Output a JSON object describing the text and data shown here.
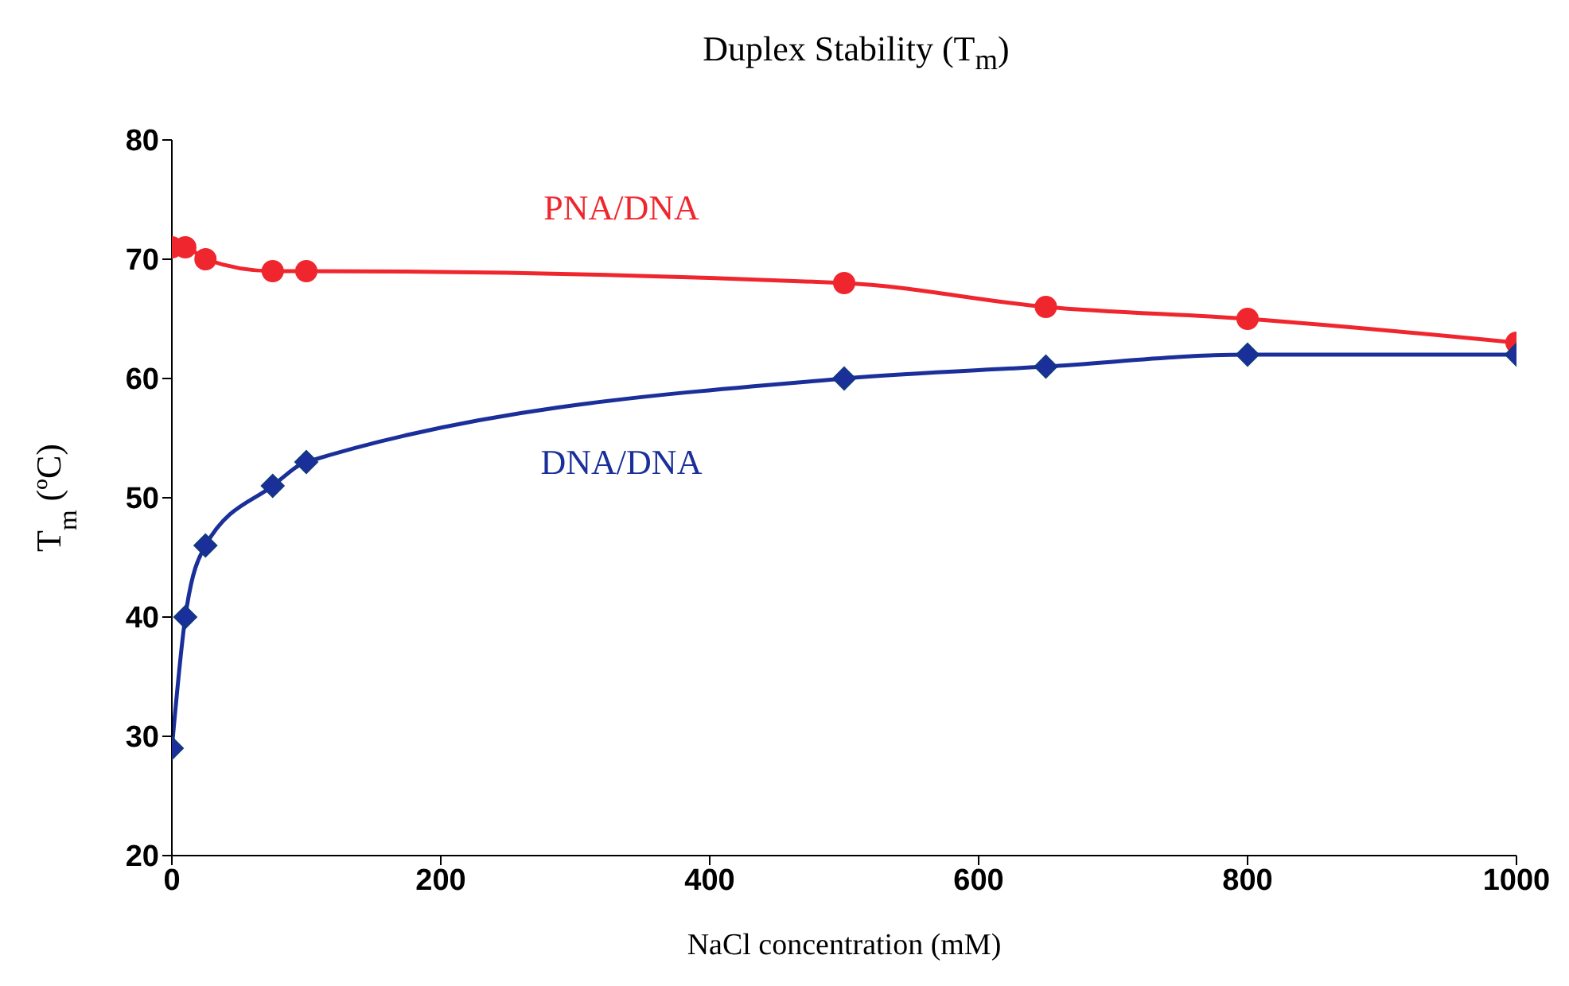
{
  "chart_data": {
    "type": "line",
    "title": "Duplex Stability (T$_{m}$)",
    "xlabel": "NaCl concentration (mM)",
    "ylabel": "T$_{m}$ (ºC)",
    "x": [
      0,
      10,
      25,
      75,
      100,
      500,
      650,
      800,
      1000
    ],
    "series": [
      {
        "name": "PNA/DNA",
        "color": "#f0262e",
        "marker": "circle",
        "values": [
          71,
          71,
          70,
          69,
          69,
          68,
          66,
          65,
          63
        ]
      },
      {
        "name": "DNA/DNA",
        "color": "#1a2f9a",
        "marker": "diamond",
        "values": [
          29,
          40,
          46,
          51,
          53,
          60,
          61,
          62,
          62
        ]
      }
    ],
    "xlim": [
      0,
      1000
    ],
    "xticks": [
      0,
      200,
      400,
      600,
      800,
      1000
    ],
    "ylim": [
      20,
      80
    ],
    "yticks": [
      20,
      30,
      40,
      50,
      60,
      70,
      80
    ],
    "grid": false,
    "legend": false
  }
}
